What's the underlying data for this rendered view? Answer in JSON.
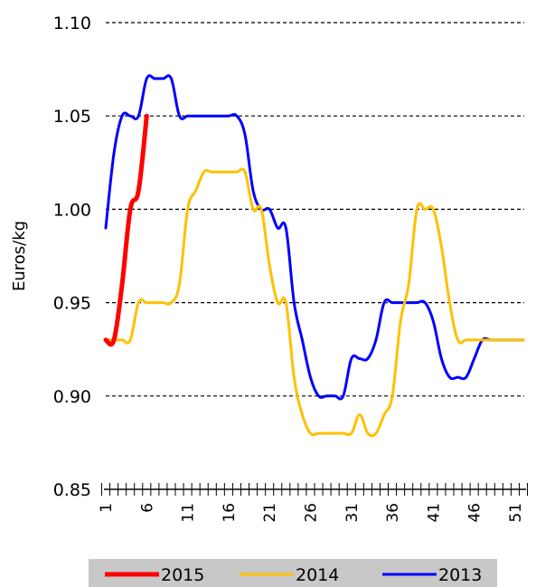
{
  "chart_data": {
    "type": "line",
    "title": "",
    "xlabel": "",
    "ylabel": "Euros/kg",
    "ylim": [
      0.85,
      1.1
    ],
    "xlim": [
      1,
      52
    ],
    "y_ticks": [
      "0.85",
      "0.90",
      "0.95",
      "1.00",
      "1.05",
      "1.10"
    ],
    "x_tick_labels": [
      "1",
      "6",
      "11",
      "16",
      "21",
      "26",
      "31",
      "36",
      "41",
      "46",
      "51"
    ],
    "grid": "horizontal dashed",
    "legend_position": "bottom",
    "series": [
      {
        "name": "2015",
        "color": "#ff0000",
        "x": [
          1,
          2,
          3,
          4,
          5,
          6
        ],
        "values": [
          0.93,
          0.93,
          0.96,
          1.0,
          1.01,
          1.05
        ]
      },
      {
        "name": "2014",
        "color": "#ffc000",
        "x": [
          1,
          2,
          3,
          4,
          5,
          6,
          7,
          8,
          9,
          10,
          11,
          12,
          13,
          14,
          15,
          16,
          17,
          18,
          19,
          20,
          21,
          22,
          23,
          24,
          25,
          26,
          27,
          28,
          29,
          30,
          31,
          32,
          33,
          34,
          35,
          36,
          37,
          38,
          39,
          40,
          41,
          42,
          43,
          44,
          45,
          46,
          47,
          48,
          49,
          50,
          51,
          52
        ],
        "values": [
          0.93,
          0.93,
          0.93,
          0.93,
          0.95,
          0.95,
          0.95,
          0.95,
          0.95,
          0.96,
          1.0,
          1.01,
          1.02,
          1.02,
          1.02,
          1.02,
          1.02,
          1.02,
          1.0,
          1.0,
          0.97,
          0.95,
          0.95,
          0.91,
          0.89,
          0.88,
          0.88,
          0.88,
          0.88,
          0.88,
          0.88,
          0.89,
          0.88,
          0.88,
          0.89,
          0.9,
          0.94,
          0.96,
          1.0,
          1.0,
          1.0,
          0.98,
          0.95,
          0.93,
          0.93,
          0.93,
          0.93,
          0.93,
          0.93,
          0.93,
          0.93,
          0.93
        ]
      },
      {
        "name": "2013",
        "color": "#0000ff",
        "x": [
          1,
          2,
          3,
          4,
          5,
          6,
          7,
          8,
          9,
          10,
          11,
          12,
          13,
          14,
          15,
          16,
          17,
          18,
          19,
          20,
          21,
          22,
          23,
          24,
          25,
          26,
          27,
          28,
          29,
          30,
          31,
          32,
          33,
          34,
          35,
          36,
          37,
          38,
          39,
          40,
          41,
          42,
          43,
          44,
          45,
          46,
          47,
          48,
          49,
          50,
          51,
          52
        ],
        "values": [
          0.99,
          1.03,
          1.05,
          1.05,
          1.05,
          1.07,
          1.07,
          1.07,
          1.07,
          1.05,
          1.05,
          1.05,
          1.05,
          1.05,
          1.05,
          1.05,
          1.05,
          1.04,
          1.01,
          1.0,
          1.0,
          0.99,
          0.99,
          0.95,
          0.93,
          0.91,
          0.9,
          0.9,
          0.9,
          0.9,
          0.92,
          0.92,
          0.92,
          0.93,
          0.95,
          0.95,
          0.95,
          0.95,
          0.95,
          0.95,
          0.94,
          0.92,
          0.91,
          0.91,
          0.91,
          0.92,
          0.93,
          0.93,
          0.93,
          0.93,
          0.93,
          0.93
        ]
      }
    ]
  }
}
